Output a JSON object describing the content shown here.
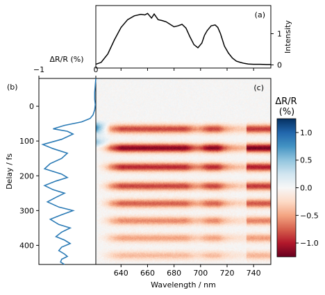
{
  "chart_data": [
    {
      "panel_label": "(a)",
      "type": "line",
      "xlabel": "",
      "ylabel": "Intensity",
      "yticks": [
        "0",
        "1"
      ],
      "xlim": [
        621,
        753
      ],
      "ylim": [
        -0.1,
        1.9
      ],
      "series": [
        {
          "color": "#000000",
          "x": [
            621,
            625,
            630,
            635,
            640,
            645,
            650,
            655,
            658,
            660,
            663,
            665,
            668,
            671,
            674,
            677,
            680,
            683,
            686,
            689,
            692,
            695,
            698,
            701,
            703,
            705,
            708,
            711,
            713,
            715,
            718,
            721,
            724,
            727,
            730,
            733,
            736,
            740,
            745,
            750,
            753
          ],
          "y": [
            0.02,
            0.08,
            0.35,
            0.8,
            1.2,
            1.45,
            1.57,
            1.62,
            1.6,
            1.65,
            1.5,
            1.63,
            1.45,
            1.42,
            1.38,
            1.3,
            1.22,
            1.25,
            1.3,
            1.18,
            0.9,
            0.65,
            0.55,
            0.7,
            0.95,
            1.1,
            1.25,
            1.28,
            1.2,
            1.0,
            0.6,
            0.38,
            0.22,
            0.12,
            0.08,
            0.05,
            0.03,
            0.02,
            0.02,
            0.01,
            0.01
          ]
        }
      ]
    },
    {
      "panel_label": "(b)",
      "type": "line",
      "top_xlabel": "ΔR/R (%)",
      "top_xticks": [
        "−1",
        "0"
      ],
      "ylabel": "Delay / fs",
      "yticks": [
        "0",
        "100",
        "200",
        "300",
        "400"
      ],
      "xlim": [
        -1,
        0
      ],
      "ylim": [
        455,
        -80
      ],
      "series": [
        {
          "color": "#2a7ab5",
          "x": [
            0.0,
            -0.01,
            -0.02,
            -0.02,
            -0.01,
            -0.02,
            -0.05,
            -0.1,
            -0.25,
            -0.55,
            -0.75,
            -0.5,
            -0.4,
            -0.6,
            -0.93,
            -0.75,
            -0.5,
            -0.6,
            -0.8,
            -0.9,
            -0.6,
            -0.5,
            -0.7,
            -0.9,
            -0.75,
            -0.55,
            -0.7,
            -0.85,
            -0.65,
            -0.4,
            -0.6,
            -0.8,
            -0.65,
            -0.45,
            -0.6,
            -0.7,
            -0.55,
            -0.45,
            -0.6,
            -0.65,
            -0.55,
            -0.5,
            -0.6,
            -0.62,
            -0.55
          ],
          "y": [
            -80,
            -60,
            -40,
            -20,
            -5,
            10,
            25,
            35,
            45,
            55,
            65,
            72,
            80,
            95,
            110,
            122,
            135,
            150,
            165,
            180,
            195,
            205,
            215,
            228,
            240,
            250,
            262,
            275,
            290,
            300,
            312,
            325,
            340,
            350,
            362,
            375,
            385,
            395,
            405,
            415,
            425,
            432,
            440,
            448,
            455
          ]
        }
      ]
    },
    {
      "panel_label": "(c)",
      "type": "heatmap",
      "xlabel": "Wavelength / nm",
      "xticks": [
        "640",
        "660",
        "680",
        "700",
        "720",
        "740"
      ],
      "xlim": [
        621,
        753
      ],
      "ylim": [
        455,
        -80
      ],
      "colorbar": {
        "label": "ΔR/R (%)",
        "range": [
          -1.25,
          1.25
        ],
        "ticks": [
          "1.0",
          "0.5",
          "0.0",
          "−0.5",
          "−1.0"
        ],
        "colors": [
          "#67001f",
          "#b2182b",
          "#d6604d",
          "#f4a582",
          "#fddbc7",
          "#f7f7f7",
          "#d1e5f0",
          "#92c5de",
          "#4393c3",
          "#2166ac",
          "#053061"
        ]
      },
      "negative_band_centers_fs": [
        65,
        120,
        175,
        230,
        280,
        330,
        380,
        430
      ],
      "negative_band_peak_values": [
        -0.85,
        -1.15,
        -0.95,
        -0.85,
        -0.75,
        -0.6,
        -0.5,
        -0.4
      ],
      "positive_edge_feature": {
        "wavelength_nm": [
          621,
          632
        ],
        "delay_fs": [
          35,
          120
        ],
        "peak_value": 1.0
      }
    }
  ]
}
